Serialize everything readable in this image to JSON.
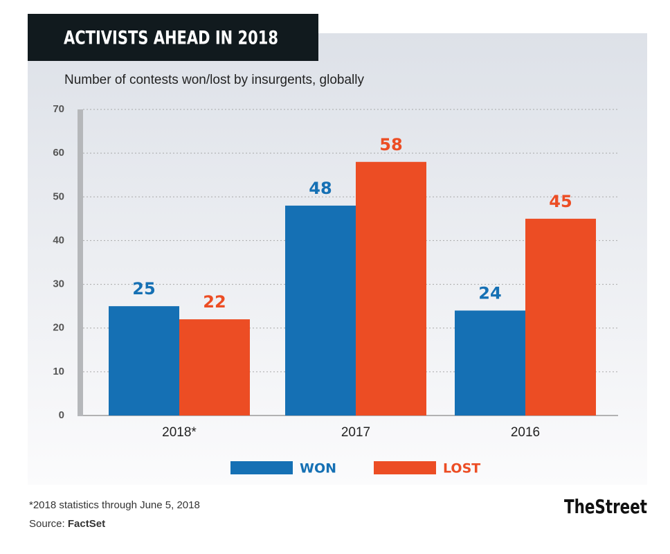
{
  "chart_data": {
    "type": "bar",
    "title": "ACTIVISTS AHEAD IN 2018",
    "subtitle": "Number of contests won/lost by insurgents, globally",
    "categories": [
      "2018*",
      "2017",
      "2016"
    ],
    "series": [
      {
        "name": "WON",
        "color": "#1570b4",
        "values": [
          25,
          48,
          24
        ]
      },
      {
        "name": "LOST",
        "color": "#ec4d24",
        "values": [
          22,
          58,
          45
        ]
      }
    ],
    "ylim": [
      0,
      70
    ],
    "yticks": [
      0,
      10,
      20,
      30,
      40,
      50,
      60,
      70
    ],
    "grid": true,
    "footnote": "*2018 statistics through June 5, 2018",
    "source_label": "Source:",
    "source": "FactSet",
    "brand": "TheStreet"
  }
}
